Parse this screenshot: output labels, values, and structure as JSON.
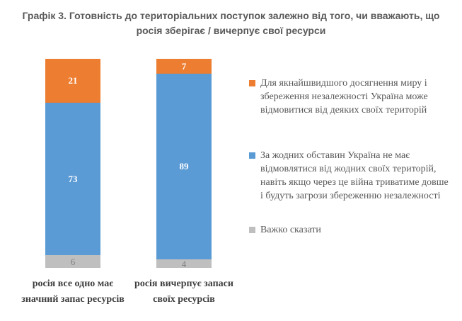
{
  "title": {
    "line1": "Графік 3. Готовність до територіальних поступок залежно від того, чи вважають, що",
    "line2": "росія зберігає / вичерпує свої ресурси"
  },
  "colors": {
    "orange": "#ED7D31",
    "blue": "#5B9BD5",
    "gray": "#BFBFBF",
    "title_text": "#595959",
    "legend_text": "#595959",
    "category_text": "#3F3F3F",
    "value_on_color": "#FFFFFF",
    "value_on_gray": "#7F7F7F"
  },
  "chart_data": {
    "type": "bar",
    "stacked": true,
    "orientation": "vertical",
    "title": "Графік 3. Готовність до територіальних поступок залежно від того, чи вважають, що росія зберігає / вичерпує свої ресурси",
    "categories": [
      "росія все одно має значний запас ресурсів",
      "росія вичерпує запаси своїх ресурсів"
    ],
    "category_lines": [
      [
        "росія все одно має",
        "значний запас ресурсів"
      ],
      [
        "росія вичерпує запаси",
        "своїх ресурсів"
      ]
    ],
    "series": [
      {
        "name": "Для якнайшвидшого досягнення миру і збереження незалежності Україна може відмовитися від деяких своїх територій",
        "color": "#ED7D31",
        "label_color": "#FFFFFF",
        "values": [
          21,
          7
        ]
      },
      {
        "name": "За жодних обставин Україна не має відмовлятися від жодних своїх територій, навіть якщо через це війна триватиме довше і будуть загрози збереженню незалежності",
        "color": "#5B9BD5",
        "label_color": "#FFFFFF",
        "values": [
          73,
          89
        ]
      },
      {
        "name": "Важко сказати",
        "color": "#BFBFBF",
        "label_color": "#7F7F7F",
        "values": [
          6,
          4
        ]
      }
    ],
    "ylim": [
      0,
      100
    ],
    "grid": false,
    "axes_shown": false,
    "data_labels": true,
    "legend_position": "right"
  }
}
